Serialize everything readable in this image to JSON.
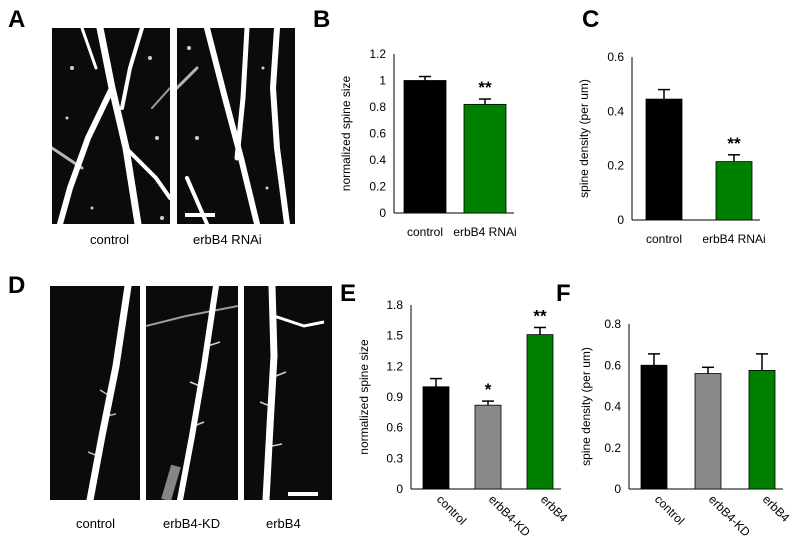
{
  "panel_letters": {
    "a": "A",
    "b": "B",
    "c": "C",
    "d": "D",
    "e": "E",
    "f": "F"
  },
  "image_captions": {
    "a_left": "control",
    "a_right": "erbB4 RNAi",
    "d_1": "control",
    "d_2": "erbB4-KD",
    "d_3": "erbB4"
  },
  "colors": {
    "control": "#000000",
    "knockdown": "#008000",
    "kd": "#8a8a8a",
    "overexpression": "#008000",
    "image_bg": "#0b0b0b",
    "dendrite": "#ffffff"
  },
  "chart_data": [
    {
      "id": "B",
      "type": "bar",
      "categories": [
        "control",
        "erbB4 RNAi"
      ],
      "values": [
        1.0,
        0.82
      ],
      "errors": [
        0.03,
        0.04
      ],
      "annotations": [
        "",
        "**"
      ],
      "ylabel": "normalized spine size",
      "ylim": [
        0,
        1.2
      ],
      "yticks": [
        "0",
        "0.2",
        "0.4",
        "0.6",
        "0.8",
        "1",
        "1.2"
      ],
      "colors": [
        "#000000",
        "#008000"
      ],
      "rotate_labels": false,
      "grid": false
    },
    {
      "id": "C",
      "type": "bar",
      "categories": [
        "control",
        "erbB4 RNAi"
      ],
      "values": [
        0.445,
        0.215
      ],
      "errors": [
        0.035,
        0.025
      ],
      "annotations": [
        "",
        "**"
      ],
      "ylabel": "spine density (per um)",
      "ylim": [
        0,
        0.6
      ],
      "yticks": [
        "0",
        "0.2",
        "0.4",
        "0.6"
      ],
      "colors": [
        "#000000",
        "#008000"
      ],
      "rotate_labels": false,
      "grid": false
    },
    {
      "id": "E",
      "type": "bar",
      "categories": [
        "control",
        "erbB4-KD",
        "erbB4"
      ],
      "values": [
        1.0,
        0.82,
        1.51
      ],
      "errors": [
        0.08,
        0.04,
        0.07
      ],
      "annotations": [
        "",
        "*",
        "**"
      ],
      "ylabel": "normalized spine size",
      "ylim": [
        0,
        1.8
      ],
      "yticks": [
        "0",
        "0.3",
        "0.6",
        "0.9",
        "1.2",
        "1.5",
        "1.8"
      ],
      "colors": [
        "#000000",
        "#8a8a8a",
        "#008000"
      ],
      "rotate_labels": true,
      "grid": false
    },
    {
      "id": "F",
      "type": "bar",
      "categories": [
        "control",
        "erbB4-KD",
        "erbB4"
      ],
      "values": [
        0.6,
        0.56,
        0.575
      ],
      "errors": [
        0.055,
        0.03,
        0.08
      ],
      "annotations": [
        "",
        "",
        ""
      ],
      "ylabel": "spine density (per um)",
      "ylim": [
        0,
        0.8
      ],
      "yticks": [
        "0",
        "0.2",
        "0.4",
        "0.6",
        "0.8"
      ],
      "colors": [
        "#000000",
        "#8a8a8a",
        "#008000"
      ],
      "rotate_labels": true,
      "grid": false
    }
  ]
}
